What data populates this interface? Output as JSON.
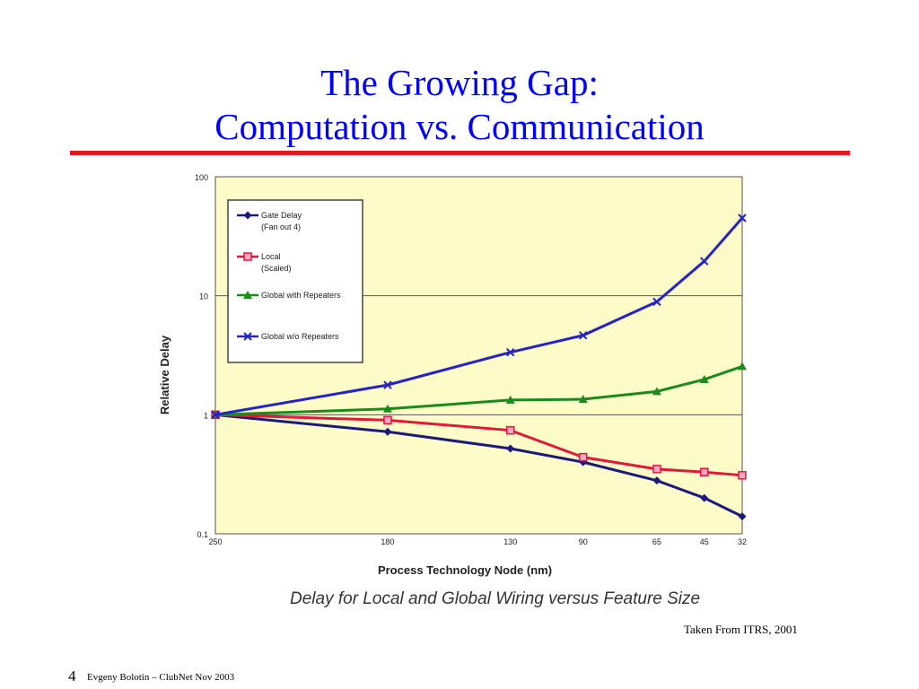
{
  "slide": {
    "title_line1": "The Growing Gap:",
    "title_line2": "Computation vs. Communication",
    "caption": "Delay for Local and Global Wiring versus Feature Size",
    "source": "Taken From ITRS, 2001",
    "page_number": "4",
    "footer": "Evgeny Bolotin – ClubNet  Nov 2003"
  },
  "colors": {
    "title": "#0000ff",
    "rule": "#e0191f",
    "plot_background": "#fdfbc8"
  },
  "chart_data": {
    "type": "line",
    "title": "",
    "xlabel": "Process Technology Node (nm)",
    "ylabel": "Relative Delay",
    "x": [
      "250",
      "180",
      "130",
      "90",
      "65",
      "45",
      "32"
    ],
    "x_values": [
      250,
      180,
      130,
      90,
      65,
      45,
      32
    ],
    "yscale": "log",
    "ylim": [
      0.1,
      100
    ],
    "yticks": [
      {
        "value": 0.1,
        "label": "0.1"
      },
      {
        "value": 1,
        "label": "1"
      },
      {
        "value": 10,
        "label": "10"
      },
      {
        "value": 100,
        "label": "100"
      }
    ],
    "grid": "horizontal at decades",
    "legend_position": "top-left",
    "series": [
      {
        "name": "Gate Delay",
        "name2": "(Fan out 4)",
        "color": "#1a1a7a",
        "marker": "diamond",
        "values": [
          1.0,
          0.72,
          0.52,
          0.4,
          0.28,
          0.2,
          0.14
        ]
      },
      {
        "name": "Local",
        "name2": "(Scaled)",
        "color": "#e0193a",
        "marker": "square",
        "values": [
          1.0,
          0.9,
          0.74,
          0.44,
          0.35,
          0.33,
          0.31
        ]
      },
      {
        "name": "Global with Repeaters",
        "name2": "",
        "color": "#1d8a1d",
        "marker": "triangle",
        "values": [
          1.0,
          1.12,
          1.33,
          1.35,
          1.57,
          1.98,
          2.55
        ]
      },
      {
        "name": "Global w/o Repeaters",
        "name2": "",
        "color": "#2323c8",
        "marker": "x",
        "values": [
          1.0,
          1.78,
          3.35,
          4.65,
          8.9,
          19.5,
          45
        ]
      }
    ]
  }
}
